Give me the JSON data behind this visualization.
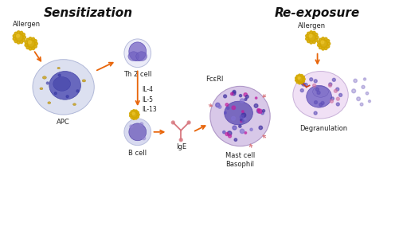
{
  "title_left": "Sensitization",
  "title_right": "Re-exposure",
  "bg_color": "#ffffff",
  "label_allergen_left": "Allergen",
  "label_apc": "APC",
  "label_th2": "Th 2 cell",
  "label_cytokines": "IL-4\nIL-5\nIL-13",
  "label_bcell": "B cell",
  "label_ige": "IgE",
  "label_fceri": "FcεRI",
  "label_mastcell": "Mast cell\nBasophil",
  "label_allergen_right": "Allergen",
  "label_degranulation": "Degranulation",
  "arrow_color": "#e8650a",
  "cell_outline_color": "#b8bedd",
  "nucleus_color": "#6a5acd",
  "apc_body_color": "#dce0f0",
  "apc_outline": "#b0b8d8",
  "th2_body_color": "#ebebf8",
  "th2_nucleus_color": "#8878cc",
  "bcell_body_color": "#d8daf0",
  "bcell_nucleus_color": "#7868c0",
  "mast_body_color": "#d8c8e8",
  "mast_nucleus_color": "#6858b8",
  "mast_dot_color": "#504090",
  "deg_body_color": "#f0e0f5",
  "deg_nucleus_color": "#7868c8",
  "allergen_color": "#d4a800",
  "allergen_highlight": "#f0c830",
  "ige_color": "#d87880",
  "receptor_color": "#d87880",
  "text_color": "#222222",
  "title_fontsize": 11,
  "label_fontsize": 6,
  "cytokine_fontsize": 5.5
}
